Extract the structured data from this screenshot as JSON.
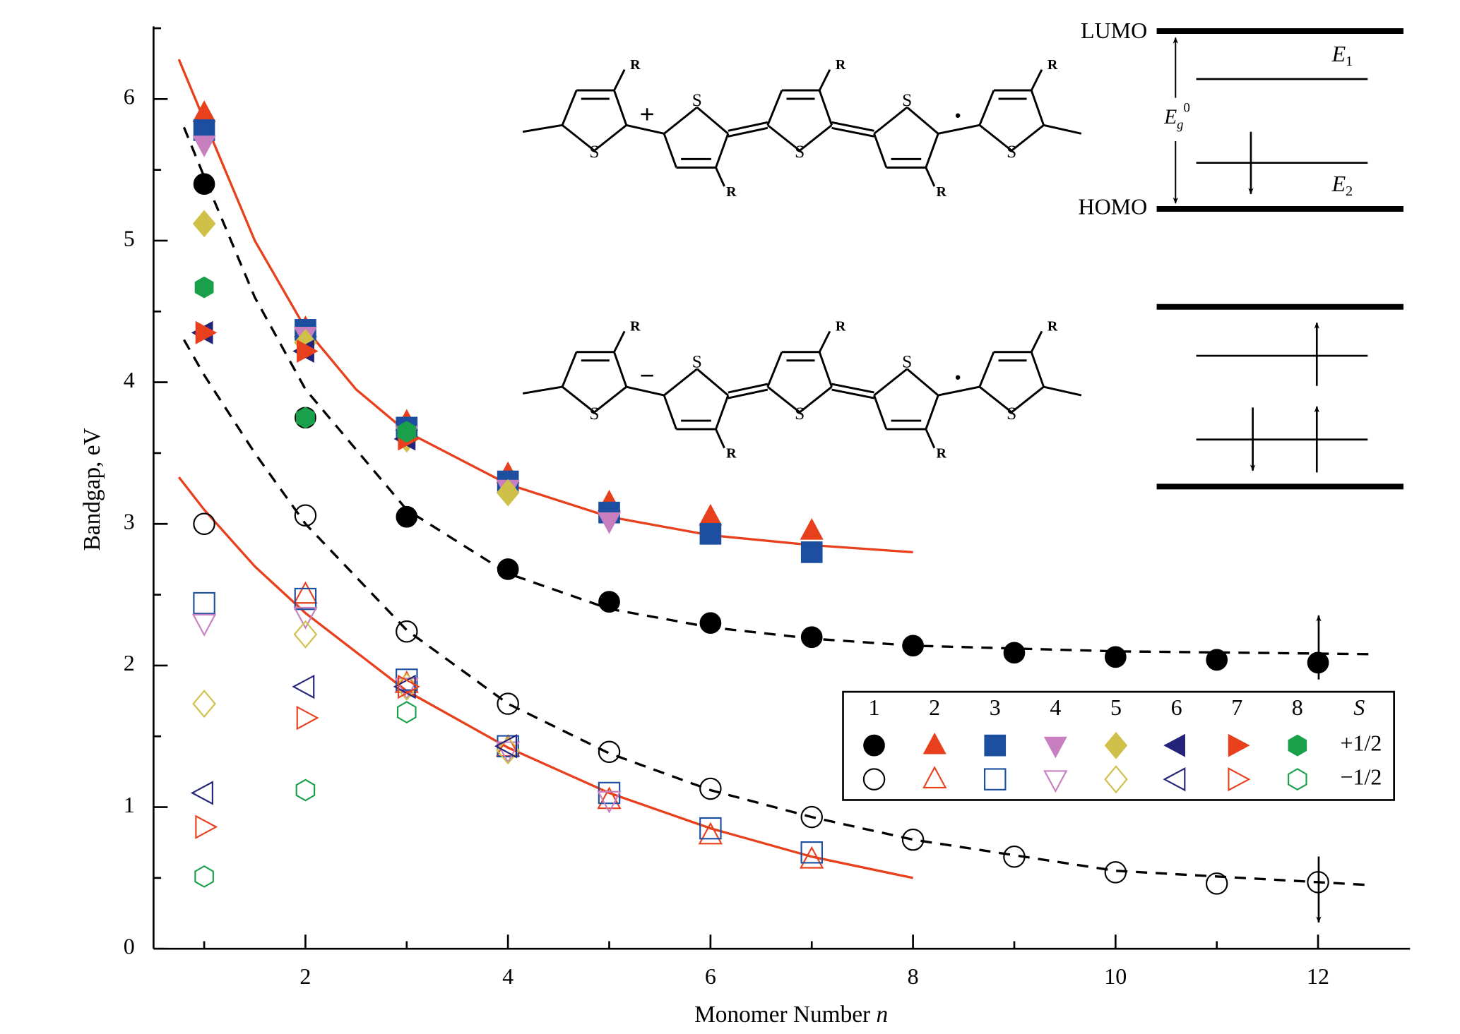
{
  "chart_data": {
    "type": "scatter",
    "xlabel": [
      "Monomer Number",
      "n"
    ],
    "ylabel": "Bandgap, eV",
    "xlim": [
      0.5,
      12.89
    ],
    "ylim": [
      0,
      6.5
    ],
    "xticks": [
      2,
      4,
      6,
      8,
      10,
      12
    ],
    "yticks": [
      0,
      1,
      2,
      3,
      4,
      5,
      6
    ],
    "xminorticks": [
      1,
      3,
      5,
      7,
      9,
      11
    ],
    "yminorticks": [
      0.5,
      1.5,
      2.5,
      3.5,
      4.5,
      5.5,
      6.5
    ],
    "x": [
      1,
      2,
      3,
      4,
      5,
      6,
      7,
      8,
      9,
      10,
      11,
      12
    ],
    "legend": {
      "title": "S",
      "rows": [
        "+1/2",
        "−1/2"
      ],
      "position": "lower right"
    },
    "series": [
      {
        "name": "1",
        "color": "#000000",
        "marker": "circle",
        "values": [
          [
            5.4,
            3.75,
            3.05,
            2.68,
            2.45,
            2.3,
            2.2,
            2.14,
            2.09,
            2.06,
            2.04,
            2.02
          ],
          [
            3.0,
            3.06,
            2.24,
            1.73,
            1.39,
            1.13,
            0.93,
            0.77,
            0.65,
            0.54,
            0.46,
            0.47
          ]
        ]
      },
      {
        "name": "2",
        "color": "#e8401c",
        "marker": "triangle-up",
        "values": [
          [
            5.9,
            4.38,
            3.72,
            3.35,
            3.15,
            3.05,
            2.95,
            null,
            null,
            null,
            null,
            null
          ],
          [
            null,
            2.5,
            1.87,
            1.42,
            1.05,
            0.8,
            0.63,
            null,
            null,
            null,
            null,
            null
          ]
        ]
      },
      {
        "name": "3",
        "color": "#1c4fa0",
        "marker": "square",
        "values": [
          [
            5.78,
            4.37,
            3.68,
            3.3,
            3.08,
            2.93,
            2.8,
            null,
            null,
            null,
            null,
            null
          ],
          [
            2.44,
            2.47,
            1.9,
            1.43,
            1.1,
            0.85,
            0.68,
            null,
            null,
            null,
            null,
            null
          ]
        ]
      },
      {
        "name": "4",
        "color": "#c77fc0",
        "marker": "triangle-down",
        "values": [
          [
            5.68,
            4.33,
            3.63,
            3.25,
            3.02,
            null,
            null,
            null,
            null,
            null,
            null,
            null
          ],
          [
            2.3,
            2.35,
            1.85,
            1.4,
            1.05,
            null,
            null,
            null,
            null,
            null,
            null,
            null
          ]
        ]
      },
      {
        "name": "5",
        "color": "#cfc04a",
        "marker": "diamond",
        "values": [
          [
            5.12,
            4.28,
            3.6,
            3.22,
            null,
            null,
            null,
            null,
            null,
            null,
            null,
            null
          ],
          [
            1.73,
            2.22,
            1.85,
            1.4,
            null,
            null,
            null,
            null,
            null,
            null,
            null,
            null
          ]
        ]
      },
      {
        "name": "6",
        "color": "#23237a",
        "marker": "triangle-left",
        "values": [
          [
            4.35,
            4.22,
            3.6,
            null,
            null,
            null,
            null,
            null,
            null,
            null,
            null,
            null
          ],
          [
            1.1,
            1.85,
            1.85,
            1.43,
            null,
            null,
            null,
            null,
            null,
            null,
            null,
            null
          ]
        ]
      },
      {
        "name": "7",
        "color": "#e8401c",
        "marker": "triangle-right",
        "values": [
          [
            4.35,
            4.22,
            3.6,
            null,
            null,
            null,
            null,
            null,
            null,
            null,
            null,
            null
          ],
          [
            0.86,
            1.63,
            1.85,
            null,
            null,
            null,
            null,
            null,
            null,
            null,
            null,
            null
          ]
        ]
      },
      {
        "name": "8",
        "color": "#1aa04a",
        "marker": "hexagon",
        "values": [
          [
            4.67,
            3.75,
            3.65,
            null,
            null,
            null,
            null,
            null,
            null,
            null,
            null,
            null
          ],
          [
            0.51,
            1.12,
            1.67,
            null,
            null,
            null,
            null,
            null,
            null,
            null,
            null,
            null
          ]
        ]
      }
    ],
    "fits": [
      {
        "color": "#e8401c",
        "style": "solid",
        "x": [
          0.75,
          1,
          1.5,
          2,
          2.5,
          3,
          4,
          5,
          6,
          7,
          8
        ],
        "values": [
          6.28,
          5.85,
          5.0,
          4.38,
          3.95,
          3.65,
          3.28,
          3.05,
          2.92,
          2.85,
          2.8
        ]
      },
      {
        "color": "#e8401c",
        "style": "solid",
        "x": [
          0.75,
          1,
          1.5,
          2,
          3,
          4,
          5,
          6,
          7,
          8
        ],
        "values": [
          3.33,
          3.1,
          2.7,
          2.37,
          1.82,
          1.42,
          1.1,
          0.85,
          0.65,
          0.5
        ]
      },
      {
        "color": "#000000",
        "style": "dashed",
        "x": [
          0.8,
          1,
          1.5,
          2,
          3,
          4,
          5,
          6,
          7,
          8,
          10,
          12.5
        ],
        "values": [
          5.8,
          5.45,
          4.6,
          3.95,
          3.1,
          2.65,
          2.4,
          2.27,
          2.19,
          2.14,
          2.1,
          2.08
        ]
      },
      {
        "color": "#000000",
        "style": "dashed",
        "x": [
          0.8,
          1,
          1.5,
          2,
          3,
          4,
          5,
          6,
          7,
          8,
          10,
          12.5
        ],
        "values": [
          4.3,
          4.05,
          3.5,
          3.0,
          2.25,
          1.73,
          1.38,
          1.12,
          0.93,
          0.77,
          0.55,
          0.45
        ]
      }
    ]
  },
  "structures": {
    "atom": "S",
    "substituent": "R",
    "charges": [
      "+",
      "−"
    ],
    "radical": "·"
  },
  "levels": {
    "lumo": "LUMO",
    "homo": "HOMO",
    "e1": [
      "E",
      "1"
    ],
    "e2": [
      "E",
      "2"
    ],
    "eg": [
      "E",
      "g",
      "0"
    ]
  }
}
